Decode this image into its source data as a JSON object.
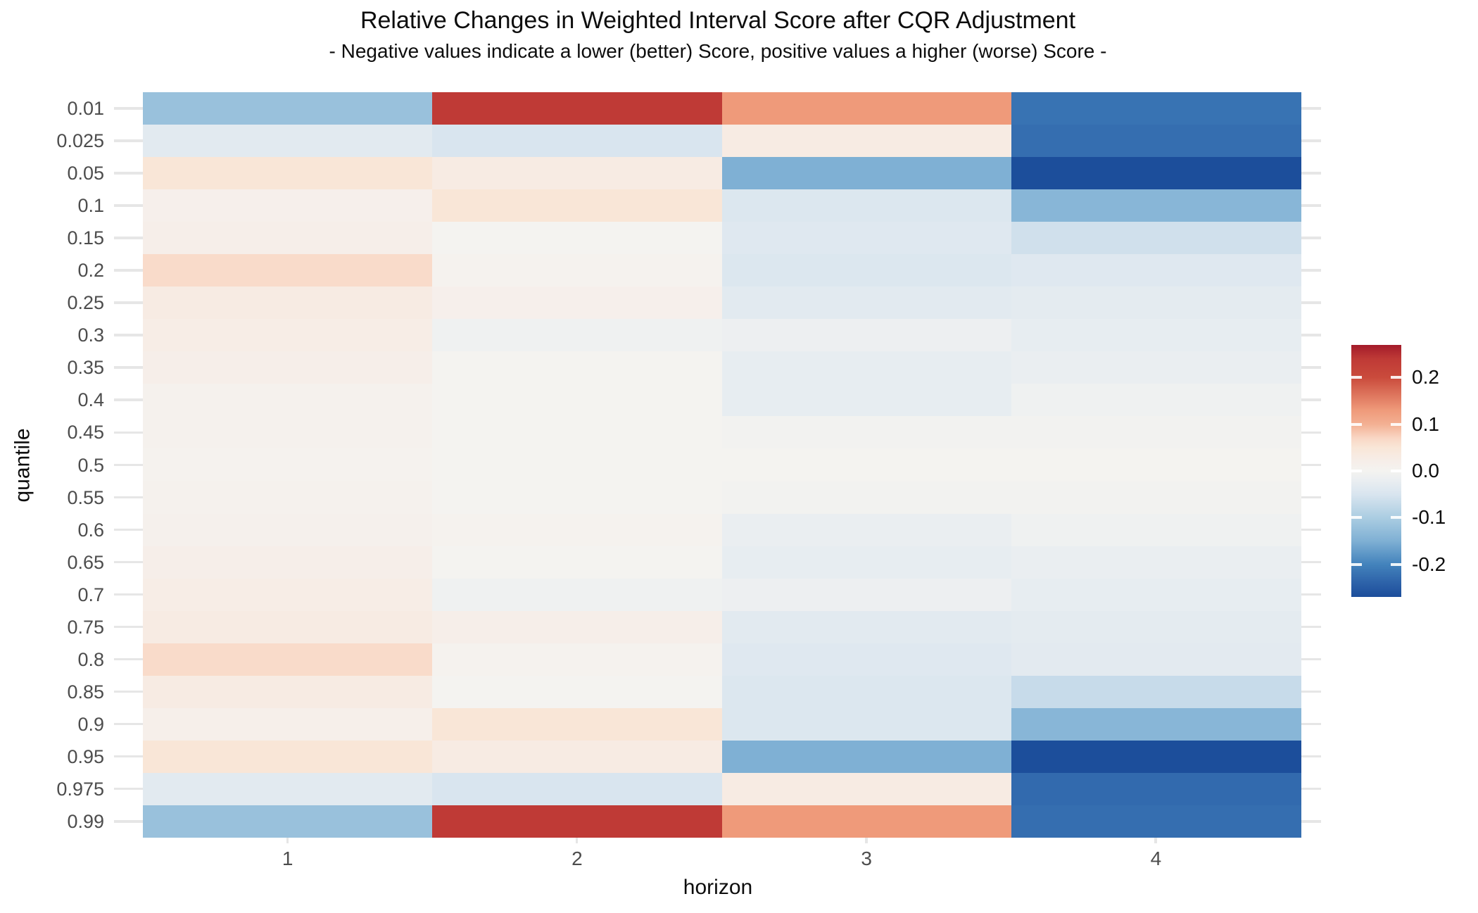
{
  "title": "Relative Changes in Weighted Interval Score after CQR Adjustment",
  "subtitle": "- Negative values indicate a lower (better) Score, positive values a higher (worse) Score -",
  "axes": {
    "x": {
      "label": "horizon",
      "ticks": [
        "1",
        "2",
        "3",
        "4"
      ]
    },
    "y": {
      "label": "quantile",
      "ticks": [
        "0.01",
        "0.025",
        "0.05",
        "0.1",
        "0.15",
        "0.2",
        "0.25",
        "0.3",
        "0.35",
        "0.4",
        "0.45",
        "0.5",
        "0.55",
        "0.6",
        "0.65",
        "0.7",
        "0.75",
        "0.8",
        "0.85",
        "0.9",
        "0.95",
        "0.975",
        "0.99"
      ]
    }
  },
  "legend": {
    "tick_labels": [
      "0.2",
      "0.1",
      "0.0",
      "-0.1",
      "-0.2"
    ],
    "tick_values": [
      0.2,
      0.1,
      0.0,
      -0.1,
      -0.2
    ],
    "domain": [
      -0.27,
      0.27
    ]
  },
  "colors": {
    "background": "#ffffff",
    "gridline": "#e6e6e6",
    "tick_text": "#4d4d4d",
    "text": "#0d0d0d",
    "positive_end": "#a31b2a",
    "midpoint": "#f4f3f0",
    "negative_end": "#1c4e9b"
  },
  "chart_data": {
    "type": "heatmap",
    "title": "Relative Changes in Weighted Interval Score after CQR Adjustment",
    "subtitle": "- Negative values indicate a lower (better) Score, positive values a higher (worse) Score -",
    "xlabel": "horizon",
    "ylabel": "quantile",
    "x": [
      1,
      2,
      3,
      4
    ],
    "y": [
      0.01,
      0.025,
      0.05,
      0.1,
      0.15,
      0.2,
      0.25,
      0.3,
      0.35,
      0.4,
      0.45,
      0.5,
      0.55,
      0.6,
      0.65,
      0.7,
      0.75,
      0.8,
      0.85,
      0.9,
      0.95,
      0.975,
      0.99
    ],
    "values_rows_by_quantile_cols_by_horizon": [
      [
        -0.12,
        0.24,
        0.13,
        -0.22
      ],
      [
        -0.035,
        -0.05,
        0.03,
        -0.225
      ],
      [
        0.05,
        0.03,
        -0.15,
        -0.27
      ],
      [
        0.015,
        0.05,
        -0.045,
        -0.14
      ],
      [
        0.02,
        0.0,
        -0.04,
        -0.06
      ],
      [
        0.065,
        0.005,
        -0.045,
        -0.04
      ],
      [
        0.03,
        0.015,
        -0.035,
        -0.03
      ],
      [
        0.025,
        -0.01,
        -0.015,
        -0.025
      ],
      [
        0.02,
        0.0,
        -0.025,
        -0.02
      ],
      [
        0.01,
        0.0,
        -0.025,
        -0.01
      ],
      [
        0.01,
        0.0,
        -0.005,
        -0.005
      ],
      [
        0.005,
        0.0,
        0.0,
        0.0
      ],
      [
        0.01,
        0.0,
        -0.005,
        -0.005
      ],
      [
        0.012,
        0.005,
        -0.02,
        -0.01
      ],
      [
        0.02,
        0.0,
        -0.025,
        -0.02
      ],
      [
        0.025,
        -0.01,
        -0.015,
        -0.025
      ],
      [
        0.03,
        0.02,
        -0.035,
        -0.03
      ],
      [
        0.065,
        0.005,
        -0.04,
        -0.033
      ],
      [
        0.03,
        0.0,
        -0.045,
        -0.07
      ],
      [
        0.018,
        0.05,
        -0.045,
        -0.14
      ],
      [
        0.05,
        0.03,
        -0.15,
        -0.27
      ],
      [
        -0.035,
        -0.05,
        0.03,
        -0.23
      ],
      [
        -0.12,
        0.24,
        0.13,
        -0.225
      ]
    ],
    "color_scale": {
      "name": "diverging-red-white-blue (positive=red/worse, negative=blue/better)",
      "domain": [
        -0.27,
        0.27
      ],
      "stops": [
        [
          -0.27,
          "#1c4e9b"
        ],
        [
          -0.24,
          "#2d62a9"
        ],
        [
          -0.2,
          "#4383bc"
        ],
        [
          -0.15,
          "#7fb0d4"
        ],
        [
          -0.1,
          "#abcde2"
        ],
        [
          -0.05,
          "#d9e5ef"
        ],
        [
          -0.02,
          "#eaeef1"
        ],
        [
          0.0,
          "#f4f3f0"
        ],
        [
          0.02,
          "#f6eee9"
        ],
        [
          0.05,
          "#f9e6d7"
        ],
        [
          0.07,
          "#f9d7c5"
        ],
        [
          0.1,
          "#f3b093"
        ],
        [
          0.13,
          "#ef9a7a"
        ],
        [
          0.2,
          "#ca4b3c"
        ],
        [
          0.24,
          "#bf3a36"
        ],
        [
          0.27,
          "#a31b2a"
        ]
      ],
      "legend_position": "right"
    },
    "grid": true
  }
}
